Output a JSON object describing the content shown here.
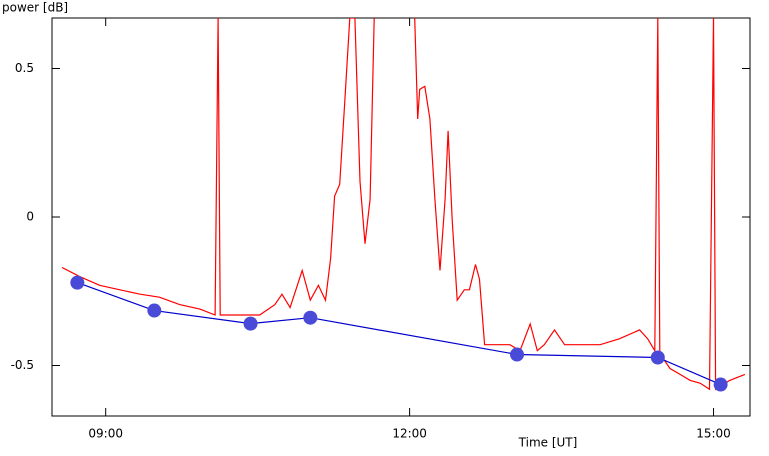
{
  "chart_data": {
    "type": "line",
    "ylabel": "power [dB]",
    "xlabel": "Time [UT]",
    "xlim": [
      8.47,
      15.36
    ],
    "ylim": [
      -0.67,
      0.67
    ],
    "xticks": [
      {
        "value": 9,
        "label": "09:00"
      },
      {
        "value": 12,
        "label": "12:00"
      },
      {
        "value": 15,
        "label": "15:00"
      }
    ],
    "yticks": [
      -0.5,
      0,
      0.5
    ],
    "series": [
      {
        "color": "#ff0000",
        "x": [
          8.57,
          8.74,
          8.94,
          9.14,
          9.34,
          9.53,
          9.73,
          9.93,
          10.08,
          10.11,
          10.13,
          10.32,
          10.52,
          10.67,
          10.74,
          10.82,
          10.94,
          11.02,
          11.1,
          11.17,
          11.22,
          11.26,
          11.31,
          11.36,
          11.41,
          11.46,
          11.51,
          11.56,
          11.61,
          11.65,
          11.85,
          12.05,
          12.08,
          12.1,
          12.15,
          12.2,
          12.25,
          12.3,
          12.35,
          12.38,
          12.42,
          12.47,
          12.54,
          12.59,
          12.65,
          12.69,
          12.74,
          12.84,
          12.99,
          13.09,
          13.19,
          13.26,
          13.33,
          13.43,
          13.53,
          13.68,
          13.88,
          14.07,
          14.27,
          14.35,
          14.42,
          14.45,
          14.47,
          14.57,
          14.67,
          14.77,
          14.87,
          14.96,
          15.0,
          15.02,
          15.16,
          15.31
        ],
        "values": [
          -0.17,
          -0.2,
          -0.23,
          -0.245,
          -0.26,
          -0.27,
          -0.295,
          -0.31,
          -0.33,
          0.67,
          -0.33,
          -0.33,
          -0.33,
          -0.295,
          -0.26,
          -0.305,
          -0.18,
          -0.28,
          -0.23,
          -0.28,
          -0.14,
          0.07,
          0.11,
          0.39,
          0.67,
          0.67,
          0.12,
          -0.09,
          0.06,
          0.67,
          null,
          0.67,
          0.33,
          0.43,
          0.44,
          0.33,
          0.06,
          -0.18,
          0.06,
          0.29,
          -0.01,
          -0.28,
          -0.245,
          -0.245,
          -0.16,
          -0.21,
          -0.43,
          -0.43,
          -0.43,
          -0.45,
          -0.36,
          -0.45,
          -0.43,
          -0.38,
          -0.43,
          -0.43,
          -0.43,
          -0.41,
          -0.38,
          -0.41,
          -0.45,
          0.67,
          -0.46,
          -0.51,
          -0.53,
          -0.55,
          -0.56,
          -0.58,
          0.67,
          -0.58,
          -0.55,
          -0.53
        ]
      },
      {
        "color": "#0000cc",
        "marker_color": "#4a4ad8",
        "markers": true,
        "x": [
          8.72,
          9.48,
          10.43,
          11.02,
          13.06,
          14.45,
          15.07
        ],
        "values": [
          -0.221,
          -0.315,
          -0.359,
          -0.339,
          -0.463,
          -0.473,
          -0.564
        ]
      }
    ]
  }
}
